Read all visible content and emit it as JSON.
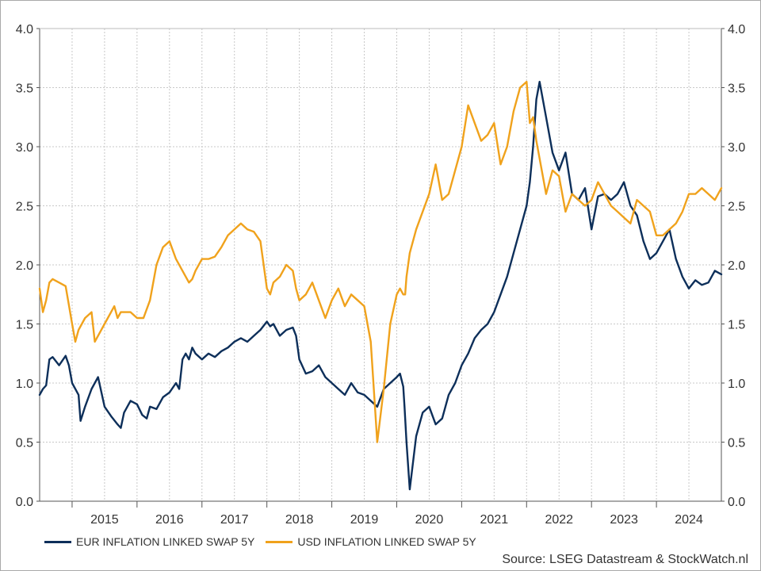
{
  "chart_data": {
    "type": "line",
    "title": "",
    "xlabel": "",
    "ylabel": "",
    "xlim": [
      2014.5,
      2025.0
    ],
    "ylim": [
      0,
      4.0
    ],
    "yticks": [
      "0.0",
      "0.5",
      "1.0",
      "1.5",
      "2.0",
      "2.5",
      "3.0",
      "3.5",
      "4.0"
    ],
    "year_labels": [
      "2015",
      "2016",
      "2017",
      "2018",
      "2019",
      "2020",
      "2021",
      "2022",
      "2023",
      "2024"
    ],
    "grid": true,
    "legend_position": "bottom-left",
    "source": "Source: LSEG Datastream & StockWatch.nl",
    "series": [
      {
        "name": "EUR INFLATION LINKED SWAP 5Y",
        "color": "#0d2f5a",
        "x": [
          2014.5,
          2014.55,
          2014.6,
          2014.65,
          2014.7,
          2014.8,
          2014.9,
          2014.95,
          2015.0,
          2015.1,
          2015.13,
          2015.2,
          2015.3,
          2015.4,
          2015.5,
          2015.6,
          2015.7,
          2015.75,
          2015.8,
          2015.9,
          2016.0,
          2016.08,
          2016.15,
          2016.2,
          2016.3,
          2016.4,
          2016.5,
          2016.6,
          2016.65,
          2016.7,
          2016.75,
          2016.8,
          2016.85,
          2016.9,
          2017.0,
          2017.1,
          2017.2,
          2017.3,
          2017.4,
          2017.5,
          2017.6,
          2017.7,
          2017.8,
          2017.9,
          2018.0,
          2018.05,
          2018.1,
          2018.2,
          2018.3,
          2018.4,
          2018.45,
          2018.5,
          2018.6,
          2018.7,
          2018.8,
          2018.9,
          2019.0,
          2019.1,
          2019.2,
          2019.3,
          2019.4,
          2019.5,
          2019.6,
          2019.7,
          2019.8,
          2019.9,
          2020.0,
          2020.05,
          2020.1,
          2020.12,
          2020.15,
          2020.2,
          2020.3,
          2020.4,
          2020.5,
          2020.6,
          2020.7,
          2020.8,
          2020.9,
          2021.0,
          2021.1,
          2021.2,
          2021.3,
          2021.4,
          2021.5,
          2021.6,
          2021.7,
          2021.8,
          2021.9,
          2022.0,
          2022.05,
          2022.1,
          2022.15,
          2022.2,
          2022.3,
          2022.4,
          2022.5,
          2022.6,
          2022.7,
          2022.8,
          2022.9,
          2023.0,
          2023.1,
          2023.2,
          2023.3,
          2023.4,
          2023.5,
          2023.6,
          2023.7,
          2023.8,
          2023.9,
          2024.0,
          2024.1,
          2024.2,
          2024.3,
          2024.4,
          2024.5,
          2024.6,
          2024.7,
          2024.8,
          2024.9,
          2025.0
        ],
        "y": [
          0.9,
          0.95,
          0.98,
          1.2,
          1.22,
          1.15,
          1.23,
          1.15,
          1.0,
          0.9,
          0.68,
          0.8,
          0.95,
          1.05,
          0.8,
          0.72,
          0.65,
          0.62,
          0.75,
          0.85,
          0.82,
          0.73,
          0.7,
          0.8,
          0.78,
          0.88,
          0.92,
          1.0,
          0.95,
          1.2,
          1.25,
          1.2,
          1.3,
          1.25,
          1.2,
          1.25,
          1.22,
          1.27,
          1.3,
          1.35,
          1.38,
          1.35,
          1.4,
          1.45,
          1.52,
          1.48,
          1.5,
          1.4,
          1.45,
          1.47,
          1.4,
          1.2,
          1.08,
          1.1,
          1.15,
          1.05,
          1.0,
          0.95,
          0.9,
          1.0,
          0.92,
          0.9,
          0.85,
          0.8,
          0.95,
          1.0,
          1.05,
          1.08,
          0.97,
          0.8,
          0.5,
          0.1,
          0.55,
          0.75,
          0.8,
          0.65,
          0.7,
          0.9,
          1.0,
          1.15,
          1.25,
          1.38,
          1.45,
          1.5,
          1.6,
          1.75,
          1.9,
          2.1,
          2.3,
          2.5,
          2.7,
          3.0,
          3.4,
          3.55,
          3.25,
          2.95,
          2.8,
          2.95,
          2.6,
          2.55,
          2.65,
          2.3,
          2.58,
          2.6,
          2.55,
          2.6,
          2.7,
          2.5,
          2.42,
          2.2,
          2.05,
          2.1,
          2.2,
          2.3,
          2.05,
          1.9,
          1.8,
          1.87,
          1.83,
          1.85,
          1.95,
          1.92
        ]
      },
      {
        "name": "USD INFLATION LINKED SWAP 5Y",
        "color": "#f0a21c",
        "x": [
          2014.5,
          2014.55,
          2014.6,
          2014.65,
          2014.7,
          2014.8,
          2014.9,
          2015.0,
          2015.05,
          2015.1,
          2015.2,
          2015.3,
          2015.35,
          2015.4,
          2015.5,
          2015.6,
          2015.65,
          2015.7,
          2015.75,
          2015.8,
          2015.9,
          2016.0,
          2016.1,
          2016.2,
          2016.3,
          2016.4,
          2016.5,
          2016.6,
          2016.7,
          2016.8,
          2016.85,
          2016.9,
          2017.0,
          2017.1,
          2017.2,
          2017.3,
          2017.4,
          2017.5,
          2017.6,
          2017.7,
          2017.8,
          2017.9,
          2018.0,
          2018.05,
          2018.1,
          2018.2,
          2018.3,
          2018.4,
          2018.45,
          2018.5,
          2018.6,
          2018.7,
          2018.8,
          2018.9,
          2019.0,
          2019.1,
          2019.2,
          2019.3,
          2019.4,
          2019.5,
          2019.6,
          2019.7,
          2019.8,
          2019.9,
          2020.0,
          2020.05,
          2020.1,
          2020.13,
          2020.15,
          2020.2,
          2020.3,
          2020.4,
          2020.5,
          2020.6,
          2020.7,
          2020.8,
          2020.9,
          2021.0,
          2021.1,
          2021.2,
          2021.3,
          2021.4,
          2021.5,
          2021.6,
          2021.7,
          2021.8,
          2021.9,
          2022.0,
          2022.05,
          2022.1,
          2022.15,
          2022.2,
          2022.3,
          2022.4,
          2022.5,
          2022.6,
          2022.7,
          2022.8,
          2022.9,
          2023.0,
          2023.1,
          2023.2,
          2023.3,
          2023.4,
          2023.5,
          2023.6,
          2023.7,
          2023.8,
          2023.9,
          2024.0,
          2024.1,
          2024.2,
          2024.3,
          2024.4,
          2024.5,
          2024.6,
          2024.7,
          2024.8,
          2024.9,
          2025.0
        ],
        "y": [
          1.8,
          1.6,
          1.7,
          1.85,
          1.88,
          1.85,
          1.82,
          1.5,
          1.35,
          1.45,
          1.55,
          1.6,
          1.35,
          1.4,
          1.5,
          1.6,
          1.65,
          1.55,
          1.6,
          1.6,
          1.6,
          1.55,
          1.55,
          1.7,
          2.0,
          2.15,
          2.2,
          2.05,
          1.95,
          1.85,
          1.88,
          1.95,
          2.05,
          2.05,
          2.07,
          2.15,
          2.25,
          2.3,
          2.35,
          2.3,
          2.28,
          2.2,
          1.8,
          1.75,
          1.85,
          1.9,
          2.0,
          1.95,
          1.8,
          1.7,
          1.75,
          1.85,
          1.7,
          1.55,
          1.7,
          1.8,
          1.65,
          1.75,
          1.7,
          1.65,
          1.35,
          0.5,
          0.95,
          1.5,
          1.75,
          1.8,
          1.75,
          1.75,
          1.9,
          2.1,
          2.3,
          2.45,
          2.6,
          2.85,
          2.55,
          2.6,
          2.8,
          3.0,
          3.35,
          3.2,
          3.05,
          3.1,
          3.2,
          2.85,
          3.0,
          3.3,
          3.5,
          3.55,
          3.2,
          3.25,
          3.05,
          2.9,
          2.6,
          2.8,
          2.75,
          2.45,
          2.6,
          2.55,
          2.5,
          2.55,
          2.7,
          2.6,
          2.5,
          2.45,
          2.4,
          2.35,
          2.55,
          2.5,
          2.45,
          2.25,
          2.25,
          2.3,
          2.35,
          2.45,
          2.6,
          2.6,
          2.65,
          2.6,
          2.55,
          2.65
        ]
      }
    ]
  }
}
